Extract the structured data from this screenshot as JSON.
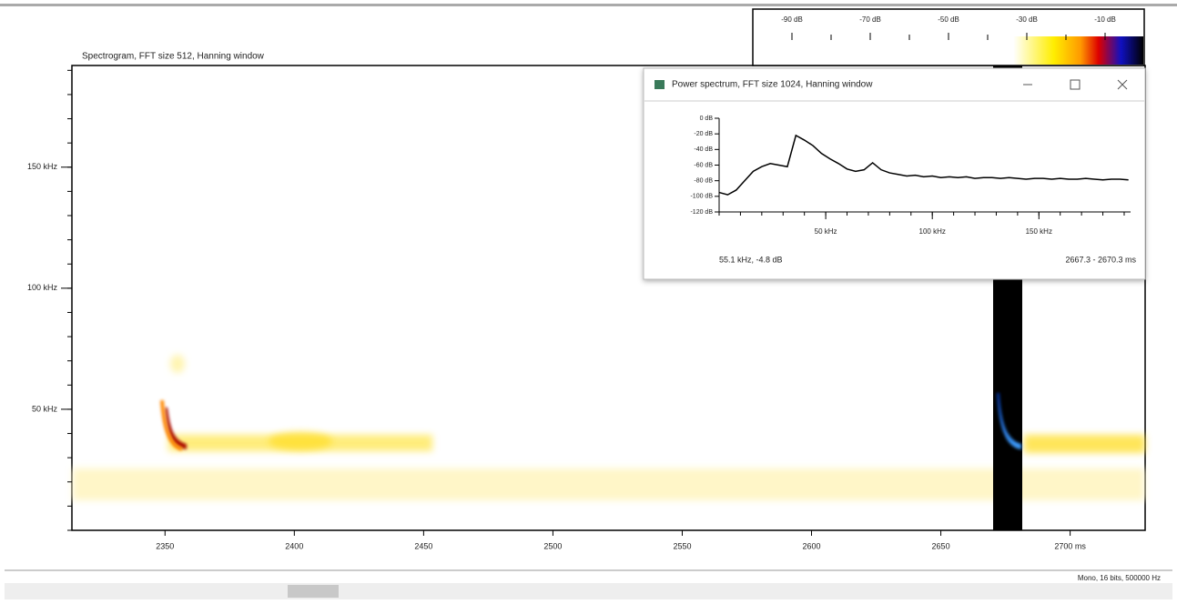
{
  "spectrogram": {
    "title": "Spectrogram, FFT size 512, Hanning window",
    "xlim": [
      2314,
      2729
    ],
    "ylim": [
      0,
      192
    ],
    "xticks": [
      2350,
      2400,
      2450,
      2500,
      2550,
      2600,
      2650,
      {
        "value": 2700,
        "label": "2700 ms"
      }
    ],
    "yticks": [
      {
        "value": 50,
        "label": "50 kHz"
      },
      {
        "value": 100,
        "label": "100 kHz"
      },
      {
        "value": 150,
        "label": "150 kHz"
      }
    ]
  },
  "color_scale": {
    "lim": [
      -100,
      0
    ],
    "ticks": [
      {
        "value": -90,
        "label": "-90 dB"
      },
      {
        "value": -70,
        "label": "-70 dB"
      },
      {
        "value": -50,
        "label": "-50 dB"
      },
      {
        "value": -30,
        "label": "-30 dB"
      },
      {
        "value": -10,
        "label": "-10 dB"
      }
    ]
  },
  "power_window": {
    "title": "Power spectrum, FFT size 1024, Hanning window",
    "type": "line",
    "color": "#000000",
    "x": [
      0,
      4,
      8,
      12,
      16,
      20,
      24,
      28,
      32,
      36,
      40,
      44,
      48,
      52,
      56,
      60,
      64,
      68,
      72,
      76,
      80,
      84,
      88,
      92,
      96,
      100,
      104,
      108,
      112,
      116,
      120,
      124,
      128,
      132,
      136,
      140,
      144,
      148,
      152,
      156,
      160,
      164,
      168,
      172,
      176,
      180,
      184,
      188,
      192
    ],
    "values": [
      -95,
      -98,
      -92,
      -80,
      -68,
      -62,
      -58,
      -60,
      -62,
      -22,
      -28,
      -35,
      -45,
      -52,
      -58,
      -65,
      -68,
      -66,
      -57,
      -66,
      -70,
      -72,
      -74,
      -73,
      -75,
      -74,
      -76,
      -75,
      -76,
      -75,
      -77,
      -76,
      -76,
      -77,
      -76,
      -77,
      -78,
      -77,
      -77,
      -78,
      -77,
      -78,
      -78,
      -77,
      -78,
      -79,
      -78,
      -78,
      -79
    ],
    "xlim": [
      0,
      193
    ],
    "ylim": [
      -120,
      0
    ],
    "xticks": [
      {
        "value": 50,
        "label": "50 kHz"
      },
      {
        "value": 100,
        "label": "100 kHz"
      },
      {
        "value": 150,
        "label": "150 kHz"
      }
    ],
    "yticks": [
      {
        "value": 0,
        "label": "0 dB"
      },
      {
        "value": -20,
        "label": "-20 dB"
      },
      {
        "value": -40,
        "label": "-40 dB"
      },
      {
        "value": -60,
        "label": "-60 dB"
      },
      {
        "value": -80,
        "label": "-80 dB"
      },
      {
        "value": -100,
        "label": "-100 dB"
      },
      {
        "value": -120,
        "label": "-120 dB"
      }
    ],
    "cursor_readout": "55.1 kHz, -4.8 dB",
    "time_range": "2667.3 - 2670.3 ms"
  },
  "status_bar": {
    "text": "Mono, 16 bits, 500000 Hz"
  }
}
